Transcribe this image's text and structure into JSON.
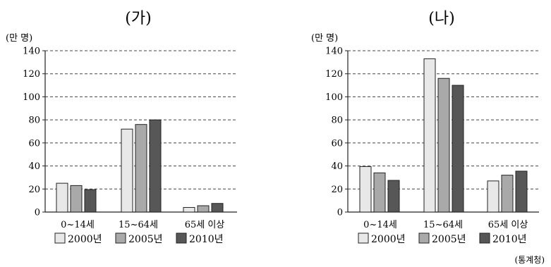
{
  "chart_data": [
    {
      "type": "bar",
      "title": "(가)",
      "ylabel": "(만 명)",
      "ylim": [
        0,
        140
      ],
      "yticks": [
        0,
        20,
        40,
        60,
        80,
        100,
        120,
        140
      ],
      "grid": true,
      "categories": [
        "0~14세",
        "15~64세",
        "65세 이상"
      ],
      "series": [
        {
          "name": "2000년",
          "color": "#e8e8e8",
          "values": [
            25,
            72,
            4
          ]
        },
        {
          "name": "2005년",
          "color": "#a9a9a9",
          "values": [
            23,
            76,
            5.5
          ]
        },
        {
          "name": "2010년",
          "color": "#575757",
          "values": [
            19.5,
            80,
            7.5
          ]
        }
      ]
    },
    {
      "type": "bar",
      "title": "(나)",
      "ylabel": "(만 명)",
      "ylim": [
        0,
        140
      ],
      "yticks": [
        0,
        20,
        40,
        60,
        80,
        100,
        120,
        140
      ],
      "grid": true,
      "categories": [
        "0~14세",
        "15~64세",
        "65세 이상"
      ],
      "series": [
        {
          "name": "2000년",
          "color": "#e8e8e8",
          "values": [
            39.5,
            133,
            27
          ]
        },
        {
          "name": "2005년",
          "color": "#a9a9a9",
          "values": [
            34,
            116,
            32
          ]
        },
        {
          "name": "2010년",
          "color": "#575757",
          "values": [
            27.5,
            110,
            35.5
          ]
        }
      ]
    }
  ],
  "source": "(통계청)"
}
